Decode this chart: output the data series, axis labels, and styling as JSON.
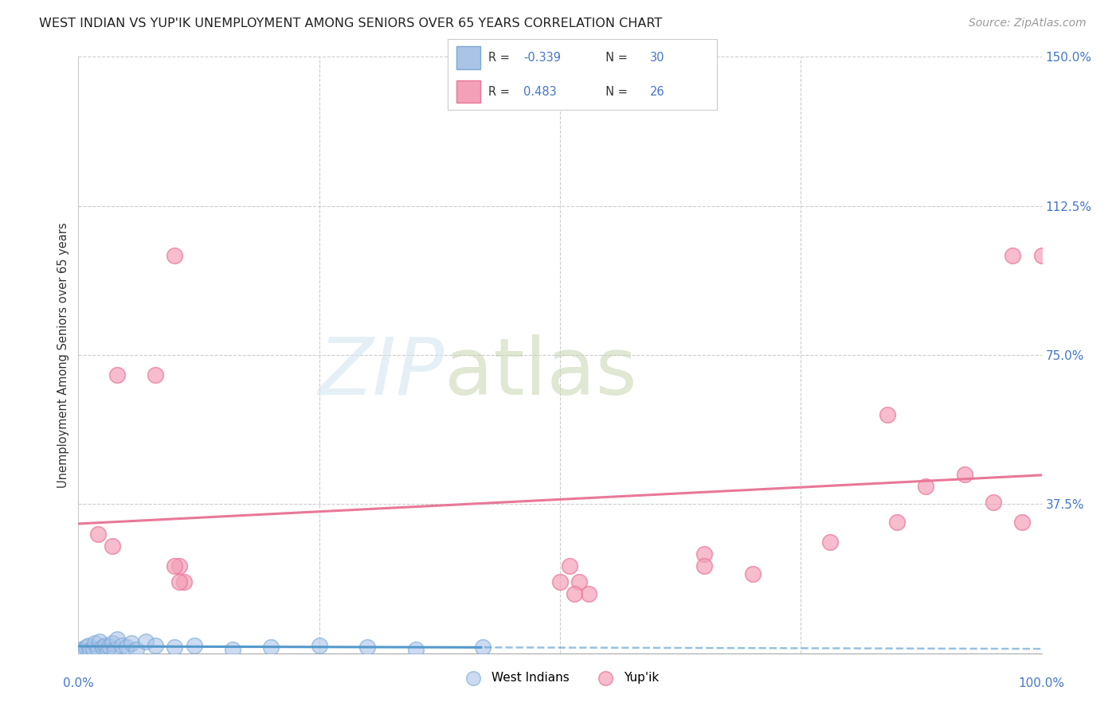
{
  "title": "WEST INDIAN VS YUP'IK UNEMPLOYMENT AMONG SENIORS OVER 65 YEARS CORRELATION CHART",
  "source": "Source: ZipAtlas.com",
  "ylabel": "Unemployment Among Seniors over 65 years",
  "xlim": [
    0,
    100
  ],
  "ylim": [
    0,
    150
  ],
  "yticks": [
    0,
    37.5,
    75.0,
    112.5,
    150.0
  ],
  "ytick_labels": [
    "",
    "37.5%",
    "75.0%",
    "112.5%",
    "150.0%"
  ],
  "xticks": [
    0,
    25,
    50,
    75,
    100
  ],
  "west_indian_color": "#aac4e8",
  "yupik_color": "#f4a0b8",
  "west_indian_edge": "#7aaad4",
  "yupik_edge": "#e87898",
  "trend_blue": "#5599cc",
  "trend_pink": "#e87898",
  "watermark_zip_color": "#d0e4f0",
  "watermark_atlas_color": "#c8d4b0",
  "west_indian_x": [
    0.3,
    0.5,
    0.8,
    1.0,
    1.2,
    1.5,
    1.7,
    2.0,
    2.2,
    2.5,
    2.8,
    3.0,
    3.2,
    3.5,
    3.8,
    4.0,
    4.5,
    5.0,
    5.5,
    6.0,
    7.0,
    8.0,
    10.0,
    12.0,
    16.0,
    20.0,
    25.0,
    30.0,
    35.0,
    42.0
  ],
  "west_indian_y": [
    1.0,
    0.5,
    1.5,
    2.0,
    0.8,
    1.2,
    2.5,
    1.0,
    3.0,
    1.5,
    2.0,
    0.5,
    1.8,
    2.5,
    1.0,
    3.5,
    2.0,
    1.5,
    2.5,
    1.0,
    3.0,
    2.0,
    1.5,
    2.0,
    1.0,
    1.5,
    2.0,
    1.5,
    1.0,
    1.5
  ],
  "yupik_x": [
    2.0,
    3.5,
    4.0,
    8.0,
    10.0,
    10.5,
    11.0,
    50.0,
    51.0,
    52.0,
    53.0,
    65.0,
    70.0,
    78.0,
    84.0,
    85.0,
    88.0,
    92.0,
    95.0,
    97.0,
    98.0,
    100.0,
    10.0,
    10.5,
    51.5,
    65.0
  ],
  "yupik_y": [
    30.0,
    27.0,
    70.0,
    70.0,
    100.0,
    22.0,
    18.0,
    18.0,
    22.0,
    18.0,
    15.0,
    25.0,
    20.0,
    28.0,
    60.0,
    33.0,
    42.0,
    45.0,
    38.0,
    100.0,
    33.0,
    100.0,
    22.0,
    18.0,
    15.0,
    22.0
  ]
}
